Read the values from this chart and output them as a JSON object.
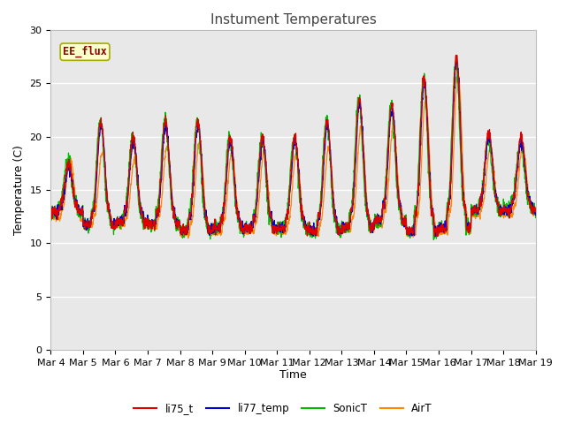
{
  "title": "Instument Temperatures",
  "ylabel": "Temperature (C)",
  "xlabel": "Time",
  "ylim": [
    0,
    30
  ],
  "yticks": [
    0,
    5,
    10,
    15,
    20,
    25,
    30
  ],
  "xtick_labels": [
    "Mar 4",
    "Mar 5",
    "Mar 6",
    "Mar 7",
    "Mar 8",
    "Mar 9",
    "Mar 10",
    "Mar 11",
    "Mar 12",
    "Mar 13",
    "Mar 14",
    "Mar 15",
    "Mar 16",
    "Mar 17",
    "Mar 18",
    "Mar 19"
  ],
  "annotation_text": "EE_flux",
  "annotation_color": "#8B0000",
  "annotation_bg": "#FFFFCC",
  "annotation_edge": "#AAAA00",
  "colors": {
    "li75_t": "#DD0000",
    "li77_temp": "#0000CC",
    "SonicT": "#00BB00",
    "AirT": "#FF8800"
  },
  "series_labels": [
    "li75_t",
    "li77_temp",
    "SonicT",
    "AirT"
  ],
  "fig_facecolor": "#FFFFFF",
  "axes_facecolor": "#E8E8E8",
  "grid_color": "#FFFFFF",
  "title_fontsize": 11,
  "axis_label_fontsize": 9,
  "tick_fontsize": 8
}
